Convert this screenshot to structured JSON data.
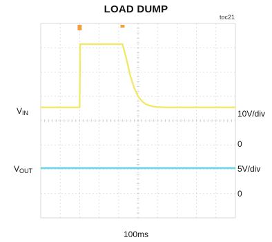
{
  "header": {
    "title": "LOAD DUMP",
    "figure_id": "toc21"
  },
  "labels": {
    "vin_main": "V",
    "vin_sub": "IN",
    "vout_main": "V",
    "vout_sub": "OUT",
    "vin_scale": "10V/div",
    "vin_zero": "0",
    "vout_scale": "5V/div",
    "vout_zero": "0",
    "timebase": "100ms"
  },
  "colors": {
    "vin_trace": "#f2e96a",
    "vout_trace": "#7dd9ea",
    "grid": "#d8d8d8",
    "marker": "#f0a040"
  },
  "chart_data": {
    "type": "line",
    "title": "LOAD DUMP",
    "xlabel": "100ms",
    "x_units": "ms",
    "xlim": [
      0,
      1000
    ],
    "grid": true,
    "divisions": {
      "x": 10,
      "y": 8
    },
    "series": [
      {
        "name": "VIN",
        "scale": "10V/div",
        "x": [
          0,
          200,
          202,
          420,
          440,
          460,
          480,
          500,
          520,
          540,
          560,
          580,
          600,
          640,
          700,
          800,
          1000
        ],
        "values": [
          14,
          14,
          40,
          40,
          34,
          27,
          22,
          18.5,
          16.5,
          15.3,
          14.7,
          14.3,
          14.1,
          14,
          14,
          14,
          14
        ]
      },
      {
        "name": "VOUT",
        "scale": "5V/div",
        "x": [
          0,
          1000
        ],
        "values": [
          5,
          5
        ]
      }
    ]
  }
}
